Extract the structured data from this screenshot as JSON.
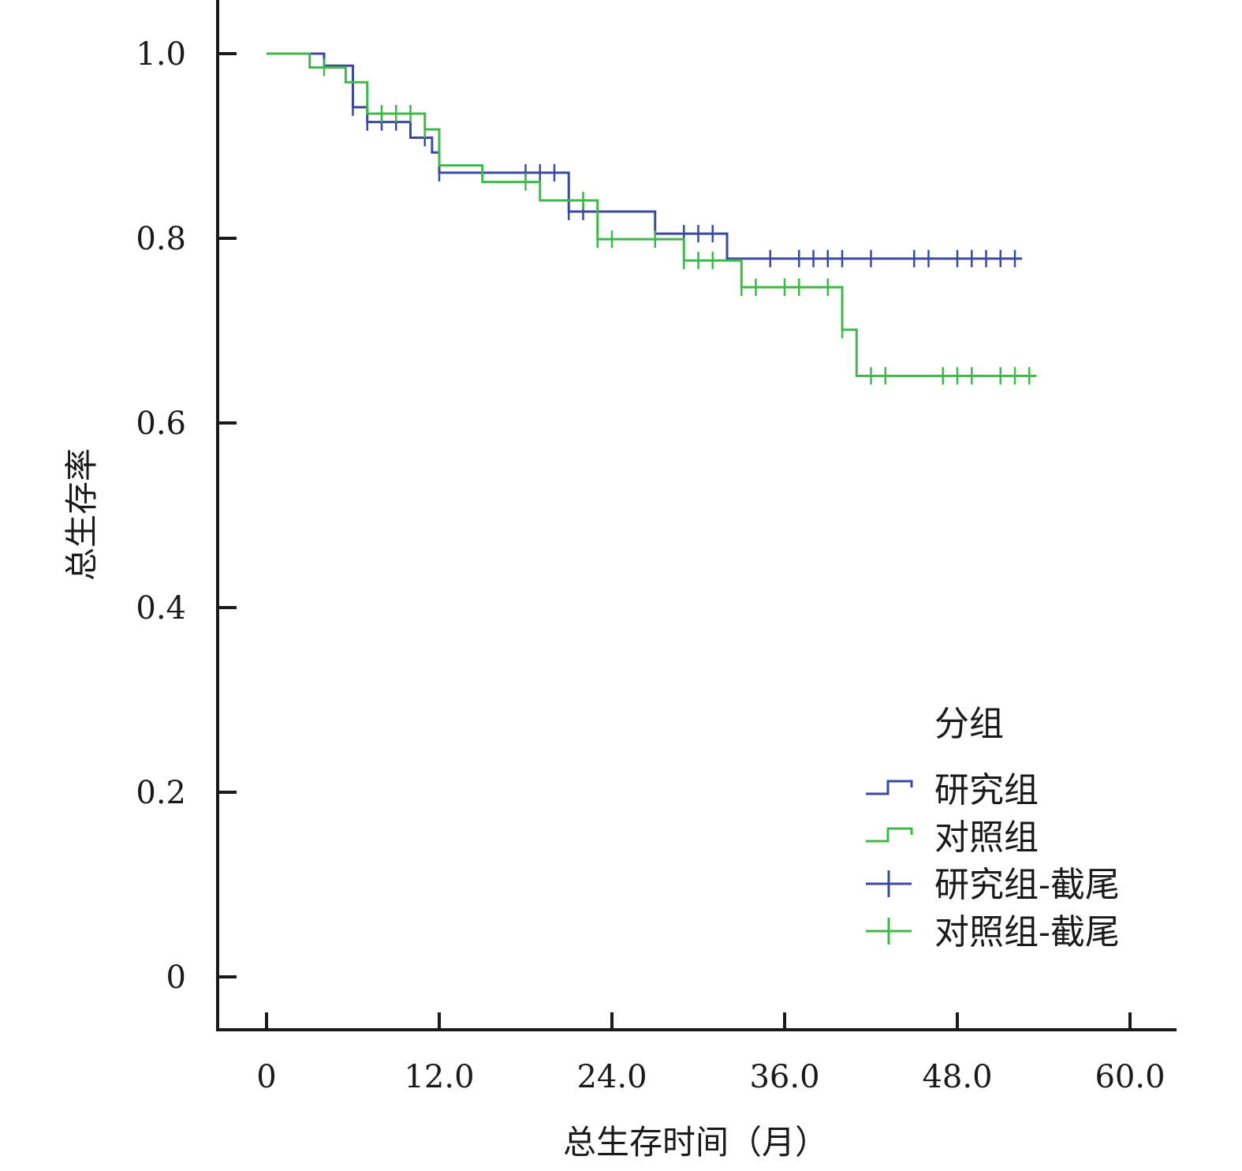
{
  "chart_data": {
    "type": "line",
    "subtype": "kaplan-meier",
    "title": "",
    "xlabel": "总生存时间（月）",
    "ylabel": "总生存率",
    "xlim": [
      -3,
      63
    ],
    "ylim": [
      -0.06,
      1.06
    ],
    "xticks": [
      0,
      12,
      24,
      36,
      48,
      60
    ],
    "xtick_labels": [
      "0",
      "12.0",
      "24.0",
      "36.0",
      "48.0",
      "60.0"
    ],
    "yticks": [
      0,
      0.2,
      0.4,
      0.6,
      0.8,
      1.0
    ],
    "ytick_labels": [
      "0",
      "0.2",
      "0.4",
      "0.6",
      "0.8",
      "1.0"
    ],
    "grid": false,
    "legend": {
      "title": "分组",
      "position": "bottom-right",
      "entries": [
        {
          "label": "研究组",
          "kind": "step",
          "color": "#3b4a9c"
        },
        {
          "label": "对照组",
          "kind": "step",
          "color": "#3fb84a"
        },
        {
          "label": "研究组-截尾",
          "kind": "censor",
          "color": "#3b4a9c"
        },
        {
          "label": "对照组-截尾",
          "kind": "censor",
          "color": "#3fb84a"
        }
      ]
    },
    "series": [
      {
        "name": "研究组",
        "color": "#3b4a9c",
        "steps": [
          [
            0,
            1.0
          ],
          [
            4.0,
            0.987
          ],
          [
            6.0,
            0.942
          ],
          [
            7.0,
            0.926
          ],
          [
            10.0,
            0.909
          ],
          [
            11.5,
            0.893
          ],
          [
            12.0,
            0.871
          ],
          [
            21.0,
            0.829
          ],
          [
            27.0,
            0.805
          ],
          [
            32.0,
            0.778
          ]
        ],
        "end_x": 52.5,
        "censored": [
          [
            6.0,
            0.942
          ],
          [
            7.0,
            0.926
          ],
          [
            8.0,
            0.926
          ],
          [
            9.0,
            0.926
          ],
          [
            11.0,
            0.909
          ],
          [
            12.0,
            0.871
          ],
          [
            18.0,
            0.871
          ],
          [
            19.0,
            0.871
          ],
          [
            20.0,
            0.871
          ],
          [
            21.0,
            0.829
          ],
          [
            22.0,
            0.829
          ],
          [
            29.0,
            0.805
          ],
          [
            30.0,
            0.805
          ],
          [
            31.0,
            0.805
          ],
          [
            35.0,
            0.778
          ],
          [
            37.0,
            0.778
          ],
          [
            38.0,
            0.778
          ],
          [
            39.0,
            0.778
          ],
          [
            40.0,
            0.778
          ],
          [
            42.0,
            0.778
          ],
          [
            45.0,
            0.778
          ],
          [
            46.0,
            0.778
          ],
          [
            48.0,
            0.778
          ],
          [
            49.0,
            0.778
          ],
          [
            50.0,
            0.778
          ],
          [
            51.0,
            0.778
          ],
          [
            52.0,
            0.778
          ]
        ]
      },
      {
        "name": "对照组",
        "color": "#3fb84a",
        "steps": [
          [
            0,
            1.0
          ],
          [
            3.0,
            0.985
          ],
          [
            5.5,
            0.969
          ],
          [
            7.0,
            0.935
          ],
          [
            11.0,
            0.918
          ],
          [
            12.0,
            0.879
          ],
          [
            15.0,
            0.861
          ],
          [
            19.0,
            0.841
          ],
          [
            23.0,
            0.799
          ],
          [
            29.0,
            0.776
          ],
          [
            33.0,
            0.747
          ],
          [
            40.0,
            0.701
          ],
          [
            41.0,
            0.651
          ]
        ],
        "end_x": 53.5,
        "censored": [
          [
            4.0,
            0.985
          ],
          [
            8.0,
            0.935
          ],
          [
            9.0,
            0.935
          ],
          [
            10.0,
            0.935
          ],
          [
            11.0,
            0.918
          ],
          [
            18.0,
            0.861
          ],
          [
            22.0,
            0.841
          ],
          [
            23.0,
            0.799
          ],
          [
            24.0,
            0.799
          ],
          [
            27.0,
            0.799
          ],
          [
            29.0,
            0.776
          ],
          [
            30.0,
            0.776
          ],
          [
            31.0,
            0.776
          ],
          [
            33.0,
            0.747
          ],
          [
            34.0,
            0.747
          ],
          [
            36.0,
            0.747
          ],
          [
            37.0,
            0.747
          ],
          [
            39.0,
            0.747
          ],
          [
            40.0,
            0.701
          ],
          [
            42.0,
            0.651
          ],
          [
            43.0,
            0.651
          ],
          [
            47.0,
            0.651
          ],
          [
            48.0,
            0.651
          ],
          [
            49.0,
            0.651
          ],
          [
            51.0,
            0.651
          ],
          [
            52.0,
            0.651
          ],
          [
            53.0,
            0.651
          ]
        ]
      }
    ]
  }
}
